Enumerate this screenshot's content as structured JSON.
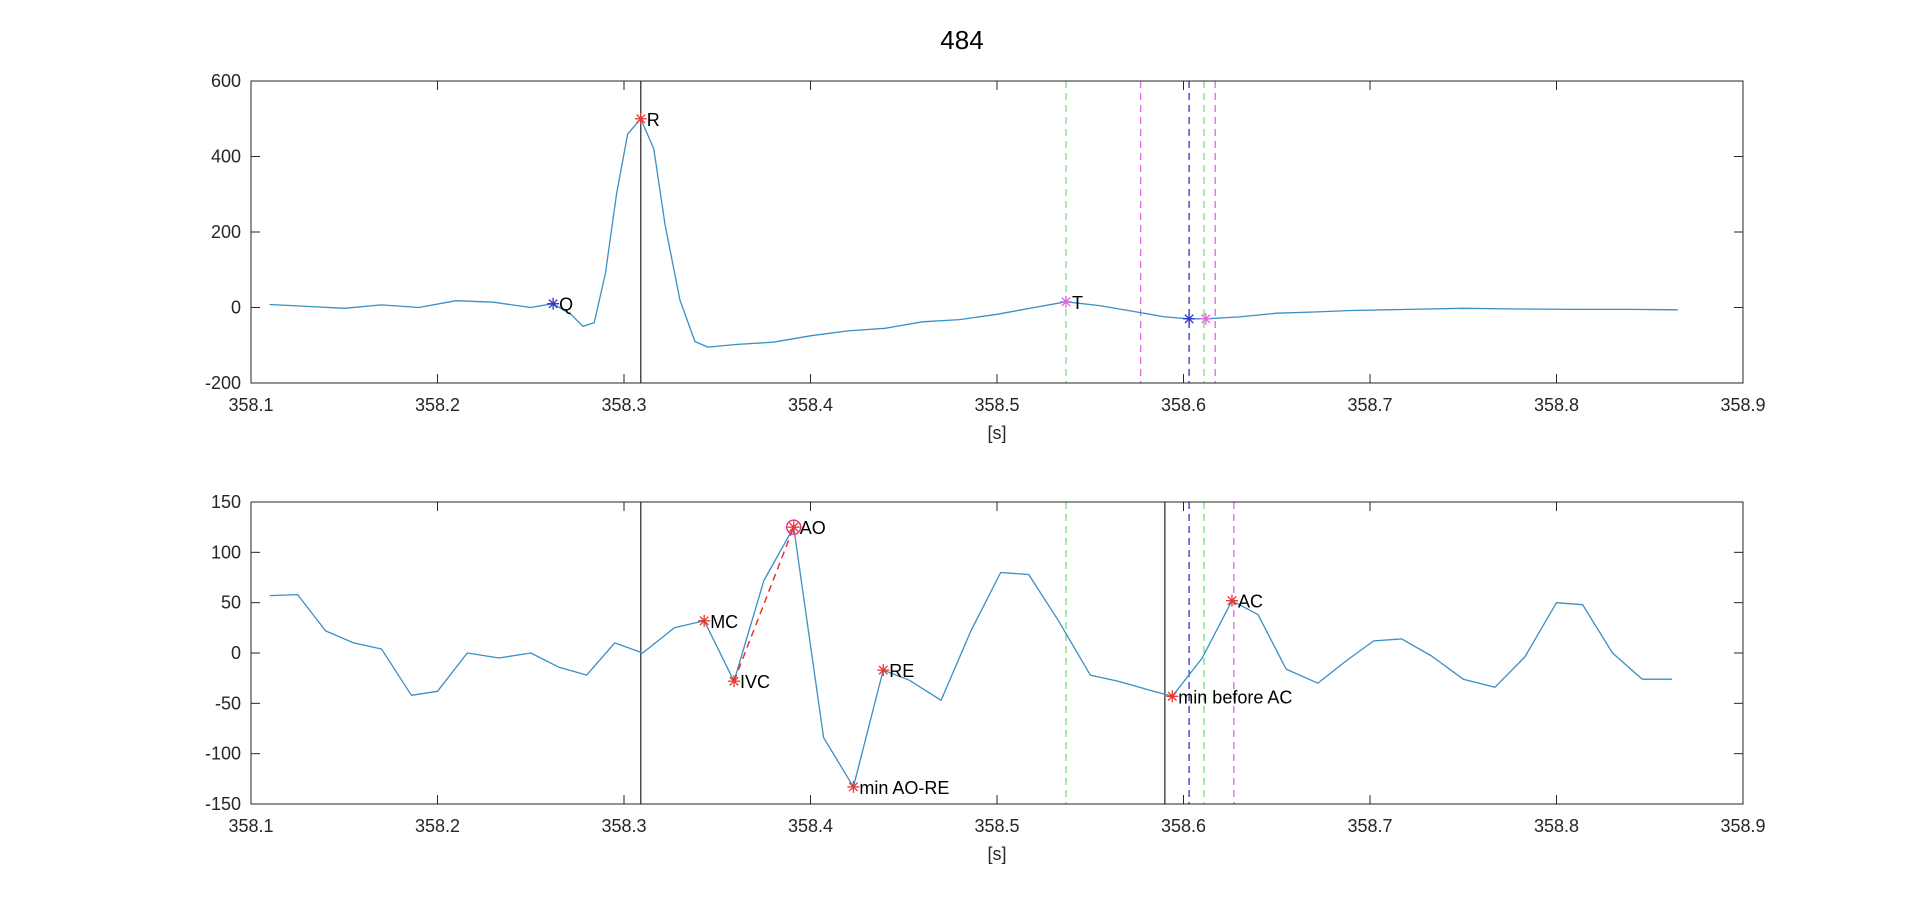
{
  "figure": {
    "title": "484",
    "line_color": "#3a8fc4",
    "colors": {
      "black": "#333333",
      "green": "#77dd77",
      "magenta": "#e066e0",
      "blue": "#3333cc",
      "red": "#e8362f",
      "pink": "#e8368f"
    }
  },
  "chart_data": [
    {
      "type": "line",
      "xlabel": "[s]",
      "xlim": [
        358.1,
        358.9
      ],
      "ylim": [
        -200,
        600
      ],
      "xticks": [
        "358.1",
        "358.2",
        "358.3",
        "358.4",
        "358.5",
        "358.6",
        "358.7",
        "358.8",
        "358.9"
      ],
      "yticks": [
        "600",
        "400",
        "200",
        "0",
        "-200"
      ],
      "ytick_values": [
        600,
        400,
        200,
        0,
        -200
      ],
      "grid": false,
      "series": [
        {
          "x": [
            358.11,
            358.13,
            358.15,
            358.17,
            358.19,
            358.21,
            358.23,
            358.25,
            358.262,
            358.272,
            358.278,
            358.284,
            358.29,
            358.296,
            358.302,
            358.309,
            358.316,
            358.322,
            358.33,
            358.338,
            358.345,
            358.36,
            358.38,
            358.4,
            358.42,
            358.44,
            358.46,
            358.48,
            358.5,
            358.52,
            358.537,
            358.555,
            358.575,
            358.59,
            358.603,
            358.612,
            358.63,
            358.65,
            358.67,
            358.69,
            358.72,
            358.75,
            358.78,
            358.81,
            358.84,
            358.865
          ],
          "y": [
            8,
            3,
            -2,
            7,
            0,
            18,
            14,
            0,
            10,
            -20,
            -50,
            -40,
            90,
            300,
            460,
            500,
            420,
            220,
            20,
            -90,
            -105,
            -98,
            -92,
            -75,
            -62,
            -55,
            -38,
            -32,
            -18,
            0,
            15,
            5,
            -12,
            -25,
            -30,
            -30,
            -25,
            -15,
            -12,
            -8,
            -5,
            -2,
            -4,
            -5,
            -5,
            -6
          ]
        }
      ],
      "vlines": [
        {
          "x": 358.309,
          "style": "solid",
          "color": "black"
        },
        {
          "x": 358.537,
          "style": "dashed",
          "color": "green"
        },
        {
          "x": 358.577,
          "style": "dashed",
          "color": "magenta"
        },
        {
          "x": 358.603,
          "style": "dashed",
          "color": "blue"
        },
        {
          "x": 358.611,
          "style": "dashed",
          "color": "green"
        },
        {
          "x": 358.617,
          "style": "dashed",
          "color": "magenta"
        }
      ],
      "markers": [
        {
          "x": 358.262,
          "y": 10,
          "color": "blue",
          "label": "Q"
        },
        {
          "x": 358.309,
          "y": 500,
          "color": "red",
          "label": "R"
        },
        {
          "x": 358.537,
          "y": 15,
          "color": "magenta",
          "label": "T"
        },
        {
          "x": 358.603,
          "y": -30,
          "color": "blue",
          "label": ""
        },
        {
          "x": 358.612,
          "y": -30,
          "color": "magenta",
          "label": ""
        }
      ]
    },
    {
      "type": "line",
      "xlabel": "[s]",
      "xlim": [
        358.1,
        358.9
      ],
      "ylim": [
        -150,
        150
      ],
      "xticks": [
        "358.1",
        "358.2",
        "358.3",
        "358.4",
        "358.5",
        "358.6",
        "358.7",
        "358.8",
        "358.9"
      ],
      "yticks": [
        "150",
        "100",
        "50",
        "0",
        "-50",
        "-100",
        "-150"
      ],
      "ytick_values": [
        150,
        100,
        50,
        0,
        -50,
        -100,
        -150
      ],
      "grid": false,
      "series": [
        {
          "x": [
            358.11,
            358.125,
            358.14,
            358.155,
            358.17,
            358.186,
            358.2,
            358.216,
            358.233,
            358.25,
            358.265,
            358.28,
            358.295,
            358.31,
            358.327,
            358.343,
            358.359,
            358.375,
            358.391,
            358.407,
            358.423,
            358.439,
            358.453,
            358.47,
            358.486,
            358.502,
            358.517,
            358.533,
            358.55,
            358.565,
            358.58,
            358.594,
            358.61,
            358.626,
            358.64,
            358.655,
            358.672,
            358.687,
            358.702,
            358.717,
            358.733,
            358.75,
            358.767,
            358.783,
            358.8,
            358.814,
            358.83,
            358.846,
            358.862
          ],
          "y": [
            57,
            58,
            22,
            10,
            4,
            -42,
            -38,
            0,
            -5,
            0,
            -14,
            -22,
            10,
            0,
            25,
            32,
            -28,
            72,
            125,
            -84,
            -133,
            -17,
            -27,
            -47,
            22,
            80,
            78,
            32,
            -22,
            -28,
            -36,
            -43,
            -5,
            52,
            38,
            -16,
            -30,
            -8,
            12,
            14,
            -3,
            -26,
            -34,
            -4,
            50,
            48,
            0,
            -26,
            -26
          ]
        }
      ],
      "vlines": [
        {
          "x": 358.309,
          "style": "solid",
          "color": "black"
        },
        {
          "x": 358.537,
          "style": "dashed",
          "color": "green"
        },
        {
          "x": 358.59,
          "style": "solid",
          "color": "black"
        },
        {
          "x": 358.603,
          "style": "dashed",
          "color": "blue"
        },
        {
          "x": 358.611,
          "style": "dashed",
          "color": "green"
        },
        {
          "x": 358.627,
          "style": "dashed",
          "color": "magenta"
        }
      ],
      "segments": [
        {
          "x1": 358.359,
          "y1": -28,
          "x2": 358.391,
          "y2": 125,
          "color": "red",
          "style": "dashed"
        }
      ],
      "markers": [
        {
          "x": 358.343,
          "y": 32,
          "color": "red",
          "label": "MC"
        },
        {
          "x": 358.359,
          "y": -28,
          "color": "red",
          "label": "IVC"
        },
        {
          "x": 358.391,
          "y": 125,
          "color": "red",
          "label": "AO",
          "circle": true
        },
        {
          "x": 358.423,
          "y": -133,
          "color": "red",
          "label": "min AO-RE"
        },
        {
          "x": 358.439,
          "y": -17,
          "color": "red",
          "label": "RE"
        },
        {
          "x": 358.594,
          "y": -43,
          "color": "red",
          "label": "min before AC"
        },
        {
          "x": 358.626,
          "y": 52,
          "color": "red",
          "label": "AC"
        }
      ]
    }
  ]
}
